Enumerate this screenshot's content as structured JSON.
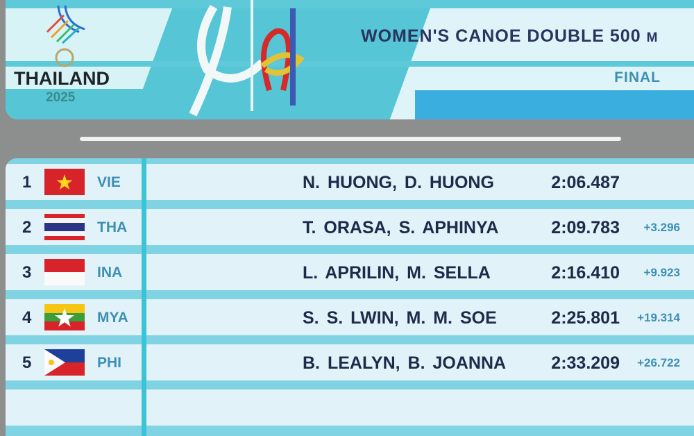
{
  "header": {
    "logo_text": "THAILAND",
    "logo_year": "2025",
    "event_title": "WOMEN'S CANOE DOUBLE 500",
    "event_unit": "M",
    "phase": "FINAL"
  },
  "results": [
    {
      "rank": "1",
      "country": "VIE",
      "flag": "vietnam-flag",
      "athletes": "N. HUONG, D. HUONG",
      "time": "2:06.487",
      "diff": ""
    },
    {
      "rank": "2",
      "country": "THA",
      "flag": "thailand-flag",
      "athletes": "T. ORASA, S. APHINYA",
      "time": "2:09.783",
      "diff": "+3.296"
    },
    {
      "rank": "3",
      "country": "INA",
      "flag": "indonesia-flag",
      "athletes": "L. APRILIN, M. SELLA",
      "time": "2:16.410",
      "diff": "+9.923"
    },
    {
      "rank": "4",
      "country": "MYA",
      "flag": "myanmar-flag",
      "athletes": "S. S. LWIN, M. M. SOE",
      "time": "2:25.801",
      "diff": "+19.314"
    },
    {
      "rank": "5",
      "country": "PHI",
      "flag": "philippines-flag",
      "athletes": "B. LEALYN, B. JOANNA",
      "time": "2:33.209",
      "diff": "+26.722"
    }
  ],
  "colors": {
    "accent": "#56c6d6",
    "row": "#e1f3f8",
    "text": "#1f2a4a",
    "code": "#3e8fb4"
  }
}
